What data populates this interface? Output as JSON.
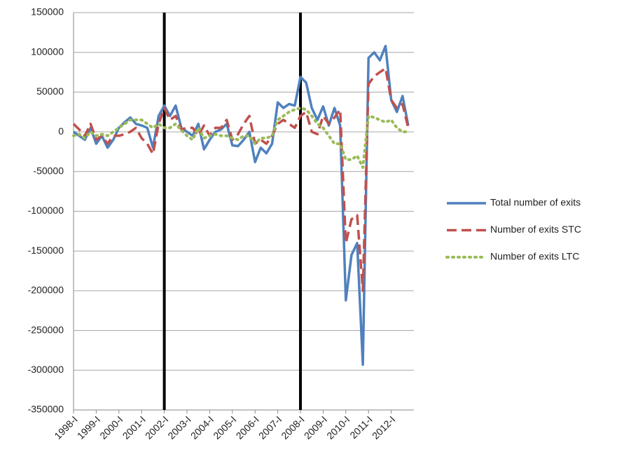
{
  "chart_data": {
    "type": "line",
    "categories": [
      "1998-I",
      null,
      null,
      null,
      "1999-I",
      null,
      null,
      null,
      "2000-I",
      null,
      null,
      null,
      "2001-I",
      null,
      null,
      null,
      "2002-I",
      null,
      null,
      null,
      "2003-I",
      null,
      null,
      null,
      "2004-I",
      null,
      null,
      null,
      "2005-I",
      null,
      null,
      null,
      "2006-I",
      null,
      null,
      null,
      "2007-I",
      null,
      null,
      null,
      "2008-I",
      null,
      null,
      null,
      "2009-I",
      null,
      null,
      null,
      "2010-I",
      null,
      null,
      null,
      "2011-I",
      null,
      null,
      null,
      "2012-I",
      null,
      null,
      null
    ],
    "series": [
      {
        "name": "Total number of exits",
        "color": "#4f81bd",
        "dash": "solid",
        "values": [
          0,
          -5000,
          -10000,
          5000,
          -15000,
          -5000,
          -20000,
          -10000,
          5000,
          12000,
          18000,
          10000,
          8000,
          5000,
          -20000,
          20000,
          33000,
          20000,
          33000,
          5000,
          0,
          -5000,
          10000,
          -22000,
          -10000,
          0,
          3000,
          10000,
          -17000,
          -18000,
          -10000,
          0,
          -38000,
          -20000,
          -27000,
          -15000,
          37000,
          30000,
          35000,
          33000,
          69000,
          62000,
          30000,
          15000,
          32000,
          8000,
          30000,
          8000,
          -212000,
          -155000,
          -140000,
          -293000,
          93000,
          100000,
          90000,
          108000,
          40000,
          25000,
          45000,
          8000
        ]
      },
      {
        "name": "Number of exits STC",
        "color": "#c0504d",
        "dash": "dashed",
        "values": [
          10000,
          3000,
          -5000,
          10000,
          -10000,
          -5000,
          -15000,
          -5000,
          -5000,
          -3000,
          0,
          5000,
          -8000,
          -15000,
          -28000,
          10000,
          30000,
          15000,
          20000,
          3000,
          5000,
          5000,
          -5000,
          8000,
          -5000,
          5000,
          5000,
          15000,
          -10000,
          -3000,
          10000,
          20000,
          -15000,
          -10000,
          -15000,
          -5000,
          10000,
          15000,
          10000,
          5000,
          20000,
          25000,
          0,
          -3000,
          20000,
          10000,
          18000,
          28000,
          -140000,
          -110000,
          -105000,
          -200000,
          60000,
          70000,
          75000,
          80000,
          40000,
          30000,
          35000,
          5000
        ]
      },
      {
        "name": "Number of exits LTC",
        "color": "#9bbb59",
        "dash": "dotted",
        "values": [
          -5000,
          -3000,
          -8000,
          0,
          -5000,
          -3000,
          -5000,
          0,
          5000,
          10000,
          15000,
          15000,
          15000,
          10000,
          5000,
          10000,
          5000,
          5000,
          10000,
          2000,
          -5000,
          -10000,
          5000,
          -8000,
          -5000,
          -3000,
          -5000,
          -5000,
          -8000,
          -10000,
          -5000,
          -5000,
          -15000,
          -8000,
          -8000,
          -5000,
          15000,
          20000,
          25000,
          28000,
          30000,
          28000,
          20000,
          10000,
          5000,
          -5000,
          -15000,
          -15000,
          -35000,
          -35000,
          -30000,
          -45000,
          20000,
          18000,
          15000,
          12000,
          15000,
          5000,
          0,
          0
        ]
      }
    ],
    "ylim": [
      -350000,
      150000
    ],
    "yticks": [
      -350000,
      -300000,
      -250000,
      -200000,
      -150000,
      -100000,
      -50000,
      0,
      50000,
      100000,
      150000
    ],
    "grid": true,
    "legend": "right"
  }
}
